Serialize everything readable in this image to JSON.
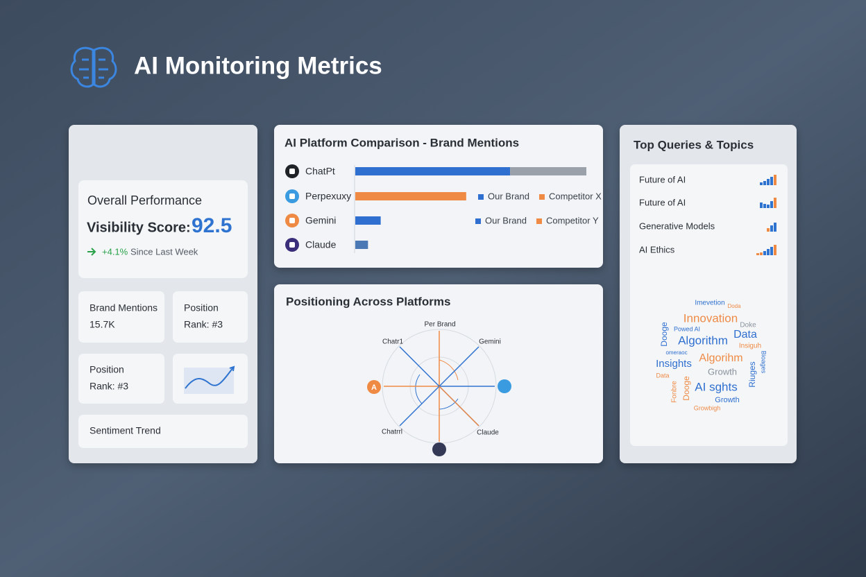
{
  "header": {
    "title": "AI Monitoring Metrics"
  },
  "overview": {
    "card_title": "Overall Performance",
    "score_label": "Visibility Score:",
    "score": "92.5",
    "change": "+4.1%",
    "change_note": "Since Last Week",
    "tiles": [
      {
        "label": "Brand Mentions",
        "value": "15.7K"
      },
      {
        "label": "Position",
        "value": "Rank: #3"
      },
      {
        "label": "Position",
        "value": "Rank: #3"
      }
    ],
    "sentiment": "Sentiment Trend"
  },
  "platform_comparison": {
    "title": "AI Platform Comparison - Brand Mentions",
    "xlim": [
      0,
      100
    ],
    "rows": [
      {
        "platform": "ChatPt",
        "segments": [
          {
            "value": 67,
            "color": "#2f6fcf"
          },
          {
            "value": 33,
            "color": "#9aa1aa"
          }
        ]
      },
      {
        "platform": "Perpexuxy",
        "segments": [
          {
            "value": 48,
            "color": "#ef8a45"
          }
        ]
      },
      {
        "platform": "Gemini",
        "segments": [
          {
            "value": 11,
            "color": "#2f6fcf"
          }
        ]
      },
      {
        "platform": "Claude",
        "segments": [
          {
            "value": 5.5,
            "color": "#4a78b5"
          }
        ]
      }
    ],
    "legends": [
      {
        "row": 1,
        "items": [
          {
            "name": "Our Brand",
            "color": "#2f6fcf"
          },
          {
            "name": "Competitor X",
            "color": "#ef8a45"
          }
        ]
      },
      {
        "row": 2,
        "items": [
          {
            "name": "Our Brand",
            "color": "#2f6fcf"
          },
          {
            "name": "Competitor Y",
            "color": "#ef8a45"
          }
        ]
      }
    ]
  },
  "positioning": {
    "title": "Positioning Across Platforms",
    "labels": [
      "Per Brand",
      "Chatr1",
      "Gemini",
      "Chatrrl",
      "Claude"
    ],
    "left_icon": "A"
  },
  "top_queries": {
    "title": "Top Queries & Topics",
    "items": [
      "Future of AI",
      "Future of AI",
      "Generative Models",
      "AI Ethics"
    ],
    "word_cloud": [
      {
        "text": "Imevetion",
        "color": "#2f6fcf"
      },
      {
        "text": "Doda",
        "color": "#ef8a45"
      },
      {
        "text": "Innovation",
        "color": "#ef8a45"
      },
      {
        "text": "Doke",
        "color": "#8a929c"
      },
      {
        "text": "Dooge",
        "color": "#2f6fcf"
      },
      {
        "text": "Powed AI",
        "color": "#2f6fcf"
      },
      {
        "text": "Algorithm",
        "color": "#2f6fcf"
      },
      {
        "text": "Data",
        "color": "#2f6fcf"
      },
      {
        "text": "Insiguh",
        "color": "#ef8a45"
      },
      {
        "text": "omeraoc",
        "color": "#2f6fcf"
      },
      {
        "text": "Insights",
        "color": "#2f6fcf"
      },
      {
        "text": "Algorihm",
        "color": "#ef8a45"
      },
      {
        "text": "Bioages",
        "color": "#2f6fcf"
      },
      {
        "text": "Growth",
        "color": "#8a929c"
      },
      {
        "text": "Data",
        "color": "#ef8a45"
      },
      {
        "text": "Dooge",
        "color": "#ef8a45"
      },
      {
        "text": "AI sghts",
        "color": "#2f6fcf"
      },
      {
        "text": "Riuges",
        "color": "#2f6fcf"
      },
      {
        "text": "Growth",
        "color": "#2f6fcf"
      },
      {
        "text": "Growbigh",
        "color": "#ef8a45"
      },
      {
        "text": "Fonbre",
        "color": "#ef8a45"
      }
    ]
  }
}
